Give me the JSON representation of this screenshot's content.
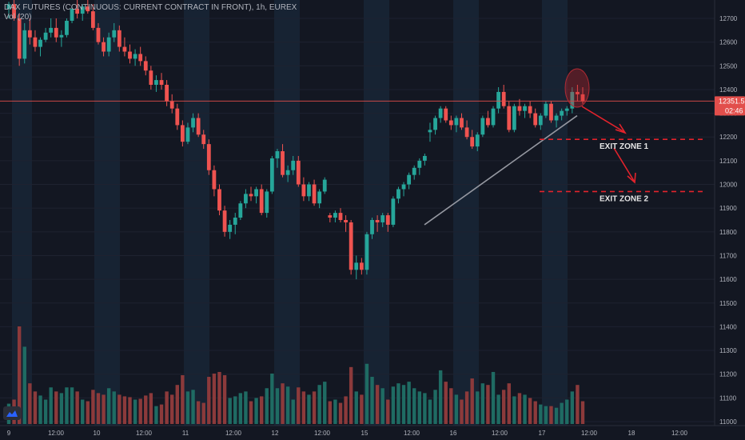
{
  "header": {
    "title": "DAX FUTURES (CONTINUOUS: CURRENT CONTRACT IN FRONT), 1h, EUREX",
    "volume_label": "Vol (20)"
  },
  "price_label": {
    "value": "12351.5",
    "countdown": "02:46"
  },
  "colors": {
    "background": "#131722",
    "session_band": "#172333",
    "up": "#26a69a",
    "down": "#ef5350",
    "up_vol": "#1f6b63",
    "down_vol": "#8c3a3b",
    "price_line": "#e24e4b",
    "annotation": "#e3232c",
    "trendline": "#9598a1"
  },
  "annotations": {
    "exit_zone_1": "EXIT ZONE 1",
    "exit_zone_2": "EXIT ZONE 2"
  },
  "chart_data": {
    "type": "candlestick",
    "title": "DAX FUTURES (CONTINUOUS: CURRENT CONTRACT IN FRONT), 1h, EUREX",
    "ylim": [
      10940,
      12790
    ],
    "y_ticks": [
      11000,
      11100,
      11200,
      11300,
      11400,
      11500,
      11600,
      11700,
      11800,
      11900,
      12000,
      12100,
      12200,
      12300,
      12400,
      12500,
      12600,
      12700
    ],
    "x_ticks": [
      "9",
      "12:00",
      "10",
      "12:00",
      "11",
      "12:00",
      "12",
      "12:00",
      "15",
      "12:00",
      "16",
      "12:00",
      "17",
      "12:00",
      "18",
      "12:00"
    ],
    "grid": true,
    "current_price": 12351.5,
    "exit_zone_1_level": 12190,
    "exit_zone_2_level": 11970,
    "candles": [
      [
        12740,
        12770,
        12700,
        12760
      ],
      [
        12760,
        12780,
        12690,
        12700
      ],
      [
        12700,
        12720,
        12500,
        12530
      ],
      [
        12530,
        12680,
        12510,
        12650
      ],
      [
        12650,
        12700,
        12590,
        12620
      ],
      [
        12620,
        12650,
        12560,
        12580
      ],
      [
        12580,
        12620,
        12540,
        12610
      ],
      [
        12610,
        12660,
        12600,
        12640
      ],
      [
        12640,
        12700,
        12620,
        12660
      ],
      [
        12660,
        12700,
        12600,
        12620
      ],
      [
        12620,
        12650,
        12580,
        12630
      ],
      [
        12630,
        12700,
        12620,
        12690
      ],
      [
        12690,
        12750,
        12680,
        12740
      ],
      [
        12740,
        12780,
        12700,
        12720
      ],
      [
        12720,
        12760,
        12690,
        12750
      ],
      [
        12750,
        12780,
        12720,
        12730
      ],
      [
        12730,
        12760,
        12650,
        12660
      ],
      [
        12660,
        12680,
        12590,
        12600
      ],
      [
        12600,
        12620,
        12540,
        12560
      ],
      [
        12560,
        12640,
        12540,
        12620
      ],
      [
        12620,
        12680,
        12600,
        12650
      ],
      [
        12650,
        12670,
        12560,
        12580
      ],
      [
        12580,
        12620,
        12540,
        12560
      ],
      [
        12560,
        12590,
        12510,
        12530
      ],
      [
        12530,
        12570,
        12500,
        12550
      ],
      [
        12550,
        12580,
        12500,
        12520
      ],
      [
        12520,
        12540,
        12460,
        12480
      ],
      [
        12480,
        12500,
        12400,
        12420
      ],
      [
        12420,
        12460,
        12390,
        12440
      ],
      [
        12440,
        12470,
        12400,
        12420
      ],
      [
        12420,
        12440,
        12330,
        12350
      ],
      [
        12350,
        12380,
        12300,
        12320
      ],
      [
        12320,
        12340,
        12230,
        12250
      ],
      [
        12250,
        12270,
        12160,
        12180
      ],
      [
        12180,
        12260,
        12170,
        12240
      ],
      [
        12240,
        12300,
        12220,
        12280
      ],
      [
        12280,
        12300,
        12200,
        12210
      ],
      [
        12210,
        12230,
        12150,
        12170
      ],
      [
        12170,
        12190,
        12040,
        12060
      ],
      [
        12060,
        12080,
        11950,
        11980
      ],
      [
        11980,
        12000,
        11870,
        11890
      ],
      [
        11890,
        11910,
        11780,
        11800
      ],
      [
        11800,
        11850,
        11770,
        11830
      ],
      [
        11830,
        11880,
        11790,
        11860
      ],
      [
        11860,
        11930,
        11850,
        11920
      ],
      [
        11920,
        11980,
        11900,
        11960
      ],
      [
        11960,
        11990,
        11930,
        11950
      ],
      [
        11950,
        11990,
        11920,
        11980
      ],
      [
        11980,
        12000,
        11870,
        11880
      ],
      [
        11880,
        11980,
        11860,
        11970
      ],
      [
        11970,
        12120,
        11960,
        12110
      ],
      [
        12110,
        12150,
        12070,
        12140
      ],
      [
        12140,
        12170,
        12030,
        12040
      ],
      [
        12040,
        12080,
        12010,
        12060
      ],
      [
        12060,
        12120,
        12040,
        12100
      ],
      [
        12100,
        12120,
        11990,
        12000
      ],
      [
        12000,
        12030,
        11930,
        11950
      ],
      [
        11950,
        12010,
        11930,
        12000
      ],
      [
        12000,
        12020,
        11910,
        11920
      ],
      [
        11920,
        11980,
        11900,
        11970
      ],
      [
        11970,
        12030,
        11960,
        12020
      ],
      [
        11870,
        11880,
        11840,
        11860
      ],
      [
        11860,
        11890,
        11840,
        11880
      ],
      [
        11880,
        11900,
        11840,
        11850
      ],
      [
        11850,
        11870,
        11800,
        11840
      ],
      [
        11840,
        11850,
        11620,
        11640
      ],
      [
        11640,
        11700,
        11600,
        11670
      ],
      [
        11670,
        11690,
        11620,
        11640
      ],
      [
        11640,
        11800,
        11620,
        11790
      ],
      [
        11790,
        11860,
        11770,
        11850
      ],
      [
        11850,
        11870,
        11800,
        11840
      ],
      [
        11840,
        11880,
        11820,
        11870
      ],
      [
        11870,
        11880,
        11800,
        11830
      ],
      [
        11830,
        11950,
        11820,
        11940
      ],
      [
        11940,
        11990,
        11920,
        11980
      ],
      [
        11980,
        12010,
        11950,
        12000
      ],
      [
        12000,
        12050,
        11980,
        12040
      ],
      [
        12040,
        12080,
        12020,
        12070
      ],
      [
        12070,
        12110,
        12040,
        12100
      ],
      [
        12100,
        12130,
        12080,
        12120
      ],
      [
        12220,
        12260,
        12180,
        12230
      ],
      [
        12230,
        12290,
        12210,
        12280
      ],
      [
        12280,
        12330,
        12260,
        12320
      ],
      [
        12320,
        12330,
        12260,
        12270
      ],
      [
        12270,
        12290,
        12230,
        12250
      ],
      [
        12250,
        12290,
        12220,
        12280
      ],
      [
        12280,
        12300,
        12230,
        12240
      ],
      [
        12240,
        12270,
        12190,
        12200
      ],
      [
        12200,
        12230,
        12150,
        12160
      ],
      [
        12160,
        12220,
        12140,
        12210
      ],
      [
        12210,
        12290,
        12200,
        12280
      ],
      [
        12280,
        12310,
        12240,
        12250
      ],
      [
        12250,
        12330,
        12240,
        12320
      ],
      [
        12320,
        12410,
        12300,
        12390
      ],
      [
        12390,
        12420,
        12320,
        12330
      ],
      [
        12330,
        12350,
        12220,
        12230
      ],
      [
        12230,
        12340,
        12220,
        12330
      ],
      [
        12330,
        12360,
        12290,
        12310
      ],
      [
        12310,
        12340,
        12280,
        12330
      ],
      [
        12330,
        12350,
        12280,
        12300
      ],
      [
        12300,
        12320,
        12240,
        12250
      ],
      [
        12250,
        12300,
        12230,
        12290
      ],
      [
        12290,
        12350,
        12280,
        12340
      ],
      [
        12340,
        12350,
        12260,
        12270
      ],
      [
        12270,
        12300,
        12240,
        12290
      ],
      [
        12290,
        12320,
        12270,
        12310
      ],
      [
        12310,
        12330,
        12290,
        12320
      ],
      [
        12320,
        12410,
        12300,
        12390
      ],
      [
        12390,
        12420,
        12350,
        12380
      ],
      [
        12380,
        12410,
        12340,
        12350
      ]
    ],
    "volumes": [
      25,
      30,
      120,
      95,
      50,
      40,
      35,
      30,
      45,
      40,
      38,
      45,
      45,
      40,
      30,
      28,
      42,
      38,
      36,
      44,
      40,
      36,
      34,
      33,
      30,
      31,
      35,
      38,
      22,
      24,
      40,
      36,
      48,
      60,
      40,
      42,
      28,
      26,
      58,
      62,
      64,
      60,
      32,
      34,
      38,
      40,
      28,
      32,
      34,
      44,
      62,
      44,
      50,
      46,
      30,
      45,
      40,
      36,
      40,
      48,
      52,
      28,
      30,
      26,
      34,
      70,
      40,
      36,
      74,
      58,
      48,
      44,
      30,
      46,
      50,
      48,
      52,
      44,
      40,
      38,
      30,
      42,
      66,
      52,
      44,
      36,
      30,
      40,
      56,
      40,
      50,
      48,
      64,
      36,
      42,
      50,
      34,
      38,
      36,
      32,
      28,
      24,
      22,
      22,
      20,
      26,
      30,
      40,
      48,
      28
    ]
  }
}
